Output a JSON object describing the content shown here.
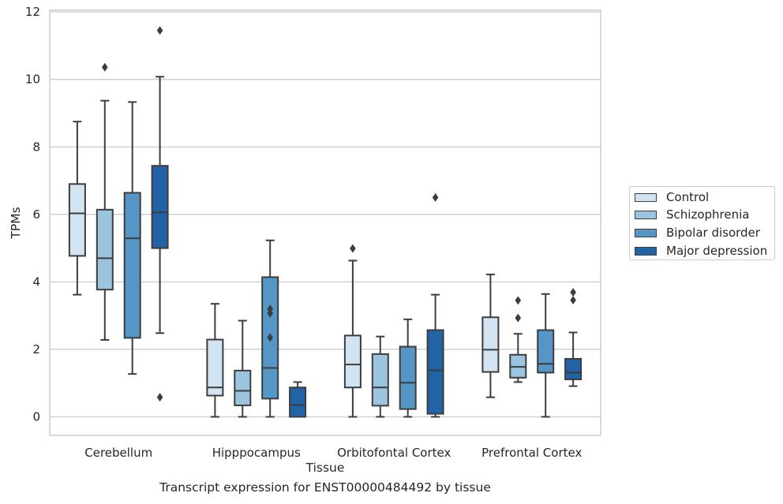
{
  "chart_data": {
    "type": "boxplot",
    "title": "Transcript expression for ENST00000484492 by tissue",
    "xlabel": "Tissue",
    "ylabel": "TPMs",
    "ylim": [
      -0.55,
      12.05
    ],
    "yticks": [
      "0",
      "2",
      "4",
      "6",
      "8",
      "10",
      "12"
    ],
    "grid": "horizontal",
    "legend_position": "right",
    "categories": [
      "Cerebellum",
      "Hipppocampus",
      "Orbitofontal Cortex",
      "Prefrontal Cortex"
    ],
    "series": [
      {
        "name": "Control",
        "color": "#d2e3f2",
        "boxes": [
          {
            "whislo": 3.62,
            "q1": 4.77,
            "med": 6.03,
            "q3": 6.9,
            "whishi": 8.75,
            "fliers": []
          },
          {
            "whislo": 0.0,
            "q1": 0.63,
            "med": 0.87,
            "q3": 2.29,
            "whishi": 3.35,
            "fliers": []
          },
          {
            "whislo": 0.0,
            "q1": 0.87,
            "med": 1.55,
            "q3": 2.41,
            "whishi": 4.63,
            "fliers": [
              4.99
            ]
          },
          {
            "whislo": 0.58,
            "q1": 1.33,
            "med": 1.99,
            "q3": 2.95,
            "whishi": 4.22,
            "fliers": []
          }
        ]
      },
      {
        "name": "Schizophrenia",
        "color": "#9bc5de",
        "boxes": [
          {
            "whislo": 2.28,
            "q1": 3.77,
            "med": 4.7,
            "q3": 6.14,
            "whishi": 9.37,
            "fliers": [
              10.36
            ]
          },
          {
            "whislo": 0.0,
            "q1": 0.34,
            "med": 0.77,
            "q3": 1.37,
            "whishi": 2.85,
            "fliers": []
          },
          {
            "whislo": 0.0,
            "q1": 0.33,
            "med": 0.87,
            "q3": 1.86,
            "whishi": 2.38,
            "fliers": []
          },
          {
            "whislo": 1.03,
            "q1": 1.16,
            "med": 1.48,
            "q3": 1.84,
            "whishi": 2.46,
            "fliers": [
              2.93,
              3.45
            ]
          }
        ]
      },
      {
        "name": "Bipolar disorder",
        "color": "#5596c6",
        "boxes": [
          {
            "whislo": 1.27,
            "q1": 2.34,
            "med": 5.29,
            "q3": 6.64,
            "whishi": 9.33,
            "fliers": []
          },
          {
            "whislo": 0.0,
            "q1": 0.54,
            "med": 1.45,
            "q3": 4.14,
            "whishi": 5.23,
            "fliers": [
              2.35,
              3.07,
              3.2
            ]
          },
          {
            "whislo": 0.0,
            "q1": 0.23,
            "med": 1.01,
            "q3": 2.08,
            "whishi": 2.89,
            "fliers": []
          },
          {
            "whislo": 0.0,
            "q1": 1.31,
            "med": 1.57,
            "q3": 2.57,
            "whishi": 3.64,
            "fliers": []
          }
        ]
      },
      {
        "name": "Major depression",
        "color": "#2263a8",
        "boxes": [
          {
            "whislo": 2.48,
            "q1": 5.0,
            "med": 6.06,
            "q3": 7.44,
            "whishi": 10.08,
            "fliers": [
              0.58,
              11.45
            ]
          },
          {
            "whislo": 0.0,
            "q1": 0.0,
            "med": 0.35,
            "q3": 0.87,
            "whishi": 1.03,
            "fliers": []
          },
          {
            "whislo": 0.0,
            "q1": 0.09,
            "med": 1.38,
            "q3": 2.57,
            "whishi": 3.62,
            "fliers": [
              6.5
            ]
          },
          {
            "whislo": 0.91,
            "q1": 1.11,
            "med": 1.31,
            "q3": 1.72,
            "whishi": 2.5,
            "fliers": [
              3.46,
              3.69
            ]
          }
        ]
      }
    ]
  }
}
